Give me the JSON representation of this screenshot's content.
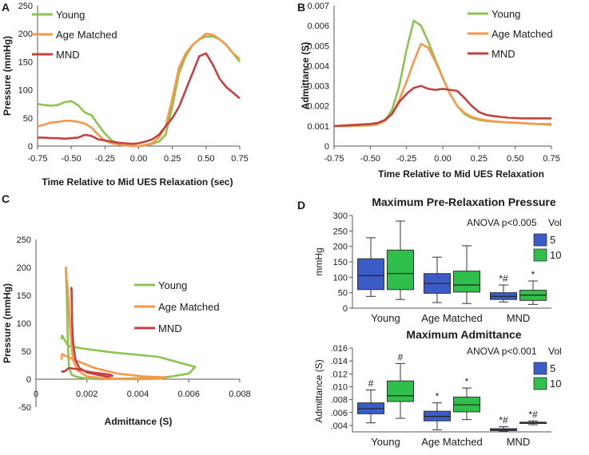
{
  "colors": {
    "young": "#8dc450",
    "age_matched": "#f7974c",
    "mnd": "#c0433f",
    "box5": "#3b5cc6",
    "box10": "#2fbf4a"
  },
  "legend_labels": [
    "Young",
    "Age Matched",
    "MND"
  ],
  "chart_data": [
    {
      "panel": "A",
      "type": "line",
      "xlabel": "Time Relative to Mid UES Relaxation (sec)",
      "ylabel": "Pressure (mmHg)",
      "xlim": [
        -0.75,
        0.75
      ],
      "ylim": [
        0,
        250
      ],
      "xticks": [
        "-0.75",
        "-0.50",
        "-0.25",
        "0.00",
        "0.25",
        "0.50",
        "0.75"
      ],
      "yticks": [
        "0",
        "50",
        "100",
        "150",
        "200",
        "250"
      ],
      "legend": "top-left",
      "series": [
        {
          "name": "Young",
          "color": "#8dc450",
          "x": [
            -0.75,
            -0.7,
            -0.65,
            -0.6,
            -0.55,
            -0.5,
            -0.45,
            -0.4,
            -0.35,
            -0.3,
            -0.25,
            -0.2,
            -0.15,
            -0.1,
            -0.05,
            0.0,
            0.05,
            0.1,
            0.15,
            0.2,
            0.25,
            0.3,
            0.35,
            0.4,
            0.45,
            0.5,
            0.55,
            0.6,
            0.65,
            0.7,
            0.75
          ],
          "y": [
            75,
            73,
            72,
            73,
            78,
            80,
            73,
            60,
            55,
            38,
            22,
            10,
            4,
            2,
            1,
            0,
            1,
            4,
            8,
            20,
            70,
            130,
            160,
            180,
            190,
            195,
            195,
            190,
            180,
            165,
            150
          ]
        },
        {
          "name": "Age Matched",
          "color": "#f7974c",
          "x": [
            -0.75,
            -0.7,
            -0.65,
            -0.6,
            -0.55,
            -0.5,
            -0.45,
            -0.4,
            -0.35,
            -0.3,
            -0.25,
            -0.2,
            -0.15,
            -0.1,
            -0.05,
            0.0,
            0.05,
            0.1,
            0.15,
            0.2,
            0.25,
            0.3,
            0.35,
            0.4,
            0.45,
            0.5,
            0.55,
            0.6,
            0.65,
            0.7,
            0.75
          ],
          "y": [
            35,
            38,
            42,
            43,
            45,
            45,
            43,
            40,
            33,
            20,
            10,
            5,
            3,
            1,
            0,
            0,
            2,
            5,
            15,
            35,
            85,
            140,
            165,
            180,
            190,
            200,
            198,
            190,
            180,
            165,
            155
          ]
        },
        {
          "name": "MND",
          "color": "#c0433f",
          "x": [
            -0.75,
            -0.7,
            -0.65,
            -0.6,
            -0.55,
            -0.5,
            -0.45,
            -0.4,
            -0.35,
            -0.3,
            -0.25,
            -0.2,
            -0.15,
            -0.1,
            -0.05,
            0.0,
            0.05,
            0.1,
            0.15,
            0.2,
            0.25,
            0.3,
            0.35,
            0.4,
            0.45,
            0.5,
            0.55,
            0.6,
            0.65,
            0.7,
            0.75
          ],
          "y": [
            15,
            15,
            14,
            14,
            13,
            14,
            15,
            20,
            18,
            12,
            10,
            8,
            6,
            5,
            4,
            5,
            8,
            12,
            20,
            35,
            50,
            70,
            100,
            130,
            160,
            165,
            145,
            120,
            105,
            95,
            85
          ]
        }
      ]
    },
    {
      "panel": "B",
      "type": "line",
      "xlabel": "Time Relative to Mid UES Relaxation",
      "ylabel": "Admittance (S)",
      "xlim": [
        -0.75,
        0.75
      ],
      "ylim": [
        0,
        0.007
      ],
      "xticks": [
        "-0.75",
        "-0.50",
        "-0.25",
        "0.00",
        "0.25",
        "0.50",
        "0.75"
      ],
      "yticks": [
        "0",
        "0.001",
        "0.002",
        "0.003",
        "0.004",
        "0.005",
        "0.006",
        "0.007"
      ],
      "legend": "top-right",
      "series": [
        {
          "name": "Young",
          "color": "#8dc450",
          "x": [
            -0.75,
            -0.7,
            -0.65,
            -0.6,
            -0.55,
            -0.5,
            -0.45,
            -0.4,
            -0.35,
            -0.3,
            -0.25,
            -0.2,
            -0.15,
            -0.1,
            -0.05,
            0.0,
            0.05,
            0.1,
            0.15,
            0.2,
            0.25,
            0.3,
            0.35,
            0.4,
            0.45,
            0.5,
            0.55,
            0.6,
            0.65,
            0.7,
            0.75
          ],
          "y": [
            0.001,
            0.001,
            0.001,
            0.00101,
            0.00102,
            0.00103,
            0.00108,
            0.00125,
            0.0018,
            0.003,
            0.0048,
            0.00625,
            0.006,
            0.0052,
            0.0043,
            0.0034,
            0.0026,
            0.002,
            0.0016,
            0.0014,
            0.0013,
            0.00125,
            0.00122,
            0.0012,
            0.00118,
            0.00116,
            0.00114,
            0.00112,
            0.0011,
            0.00108,
            0.00105
          ]
        },
        {
          "name": "Age Matched",
          "color": "#f7974c",
          "x": [
            -0.75,
            -0.7,
            -0.65,
            -0.6,
            -0.55,
            -0.5,
            -0.45,
            -0.4,
            -0.35,
            -0.3,
            -0.25,
            -0.2,
            -0.15,
            -0.1,
            -0.05,
            0.0,
            0.05,
            0.1,
            0.15,
            0.2,
            0.25,
            0.3,
            0.35,
            0.4,
            0.45,
            0.5,
            0.55,
            0.6,
            0.65,
            0.7,
            0.75
          ],
          "y": [
            0.001,
            0.001,
            0.00101,
            0.00102,
            0.00103,
            0.00105,
            0.0011,
            0.00125,
            0.0016,
            0.0023,
            0.0032,
            0.0042,
            0.0051,
            0.0049,
            0.0042,
            0.0034,
            0.0026,
            0.002,
            0.00165,
            0.00145,
            0.00135,
            0.00128,
            0.00124,
            0.0012,
            0.00118,
            0.00116,
            0.00114,
            0.00112,
            0.0011,
            0.0011,
            0.0011
          ]
        },
        {
          "name": "MND",
          "color": "#c0433f",
          "x": [
            -0.75,
            -0.7,
            -0.65,
            -0.6,
            -0.55,
            -0.5,
            -0.45,
            -0.4,
            -0.35,
            -0.3,
            -0.25,
            -0.2,
            -0.15,
            -0.1,
            -0.05,
            0.0,
            0.05,
            0.1,
            0.15,
            0.2,
            0.25,
            0.3,
            0.35,
            0.4,
            0.45,
            0.5,
            0.55,
            0.6,
            0.65,
            0.7,
            0.75
          ],
          "y": [
            0.001,
            0.00102,
            0.00104,
            0.00106,
            0.00108,
            0.0011,
            0.00115,
            0.0013,
            0.0016,
            0.0022,
            0.0026,
            0.0029,
            0.003,
            0.00285,
            0.0028,
            0.00285,
            0.0028,
            0.00275,
            0.0024,
            0.002,
            0.0017,
            0.00155,
            0.0015,
            0.00145,
            0.00142,
            0.0014,
            0.00138,
            0.00138,
            0.00138,
            0.00138,
            0.00138
          ]
        }
      ]
    },
    {
      "panel": "C",
      "type": "line",
      "xlabel": "Admittance (S)",
      "ylabel": "Pressure (mmHg)",
      "xlim": [
        0,
        0.008
      ],
      "ylim": [
        -50,
        250
      ],
      "xticks": [
        "0",
        "0.002",
        "0.004",
        "0.006",
        "0.008"
      ],
      "yticks": [
        "-50",
        "0",
        "50",
        "100",
        "150",
        "200",
        "250"
      ],
      "legend": "right",
      "series": [
        {
          "name": "Young",
          "color": "#8dc450",
          "x": [
            0.001,
            0.001,
            0.00103,
            0.00125,
            0.0018,
            0.003,
            0.0048,
            0.00625,
            0.006,
            0.0052,
            0.0043,
            0.0034,
            0.0026,
            0.002,
            0.0016,
            0.0014,
            0.0013,
            0.00125,
            0.00122,
            0.0012,
            0.00118,
            0.00116
          ],
          "y": [
            75,
            73,
            78,
            60,
            55,
            48,
            40,
            22,
            10,
            4,
            2,
            1,
            0,
            1,
            4,
            8,
            20,
            70,
            130,
            160,
            190,
            195
          ]
        },
        {
          "name": "Age Matched",
          "color": "#f7974c",
          "x": [
            0.001,
            0.00101,
            0.00103,
            0.0011,
            0.0016,
            0.0023,
            0.0032,
            0.0042,
            0.0051,
            0.0049,
            0.0042,
            0.0034,
            0.0026,
            0.002,
            0.00165,
            0.00145,
            0.00135,
            0.00128,
            0.00124,
            0.0012,
            0.00118,
            0.00116
          ],
          "y": [
            35,
            42,
            45,
            43,
            33,
            20,
            10,
            5,
            3,
            1,
            0,
            0,
            2,
            5,
            15,
            35,
            85,
            140,
            165,
            180,
            200,
            198
          ]
        },
        {
          "name": "MND",
          "color": "#c0433f",
          "x": [
            0.001,
            0.00104,
            0.00108,
            0.00115,
            0.0013,
            0.0016,
            0.0022,
            0.0026,
            0.0029,
            0.003,
            0.00285,
            0.0028,
            0.00275,
            0.0024,
            0.002,
            0.0017,
            0.00155,
            0.0015,
            0.00145,
            0.00142,
            0.0014,
            0.00138
          ],
          "y": [
            15,
            14,
            13,
            15,
            20,
            18,
            12,
            10,
            8,
            6,
            5,
            4,
            5,
            8,
            12,
            20,
            35,
            50,
            70,
            100,
            160,
            165
          ]
        }
      ]
    },
    {
      "panel": "D",
      "type": "box",
      "title": "Maximum Pre-Relaxation Pressure",
      "annotation": "ANOVA p<0.005",
      "legend_title": "Vol",
      "legend": [
        "5",
        "10"
      ],
      "ylabel": "mmHg",
      "ylim": [
        0,
        300
      ],
      "yticks": [
        "0",
        "50",
        "100",
        "150",
        "200",
        "250",
        "300"
      ],
      "categories": [
        "Young",
        "Age Matched",
        "MND"
      ],
      "groups": [
        {
          "vol": "5",
          "boxes": [
            {
              "min": 38,
              "q1": 60,
              "median": 105,
              "q3": 160,
              "max": 228,
              "sig": ""
            },
            {
              "min": 18,
              "q1": 48,
              "median": 80,
              "q3": 112,
              "max": 165,
              "sig": ""
            },
            {
              "min": 20,
              "q1": 28,
              "median": 38,
              "q3": 50,
              "max": 75,
              "sig": "*#"
            }
          ]
        },
        {
          "vol": "10",
          "boxes": [
            {
              "min": 28,
              "q1": 60,
              "median": 112,
              "q3": 188,
              "max": 282,
              "sig": ""
            },
            {
              "min": 15,
              "q1": 52,
              "median": 75,
              "q3": 120,
              "max": 202,
              "sig": ""
            },
            {
              "min": 12,
              "q1": 25,
              "median": 42,
              "q3": 58,
              "max": 88,
              "sig": "*"
            }
          ]
        }
      ]
    },
    {
      "panel": "D",
      "type": "box",
      "title": "Maximum Admittance",
      "annotation": "ANOVA p<0.001",
      "legend_title": "Vol",
      "legend": [
        "5",
        "10"
      ],
      "ylabel": "Admittance (S)",
      "ylim": [
        0.003,
        0.016
      ],
      "yticks": [
        ".004",
        ".006",
        ".008",
        ".010",
        ".012",
        ".014",
        ".016"
      ],
      "categories": [
        "Young",
        "Age Matched",
        "MND"
      ],
      "groups": [
        {
          "vol": "5",
          "boxes": [
            {
              "min": 0.0044,
              "q1": 0.0058,
              "median": 0.0066,
              "q3": 0.0075,
              "max": 0.0095,
              "sig": "#"
            },
            {
              "min": 0.0033,
              "q1": 0.0047,
              "median": 0.0054,
              "q3": 0.0062,
              "max": 0.0075,
              "sig": "*"
            },
            {
              "min": 0.0031,
              "q1": 0.0032,
              "median": 0.0033,
              "q3": 0.0035,
              "max": 0.0038,
              "sig": "*#"
            }
          ]
        },
        {
          "vol": "10",
          "boxes": [
            {
              "min": 0.0051,
              "q1": 0.0077,
              "median": 0.0086,
              "q3": 0.0109,
              "max": 0.0136,
              "sig": "#"
            },
            {
              "min": 0.0049,
              "q1": 0.0061,
              "median": 0.0072,
              "q3": 0.0084,
              "max": 0.0098,
              "sig": "*"
            },
            {
              "min": 0.0041,
              "q1": 0.0043,
              "median": 0.0044,
              "q3": 0.0045,
              "max": 0.0047,
              "sig": "*#"
            }
          ]
        }
      ]
    }
  ]
}
